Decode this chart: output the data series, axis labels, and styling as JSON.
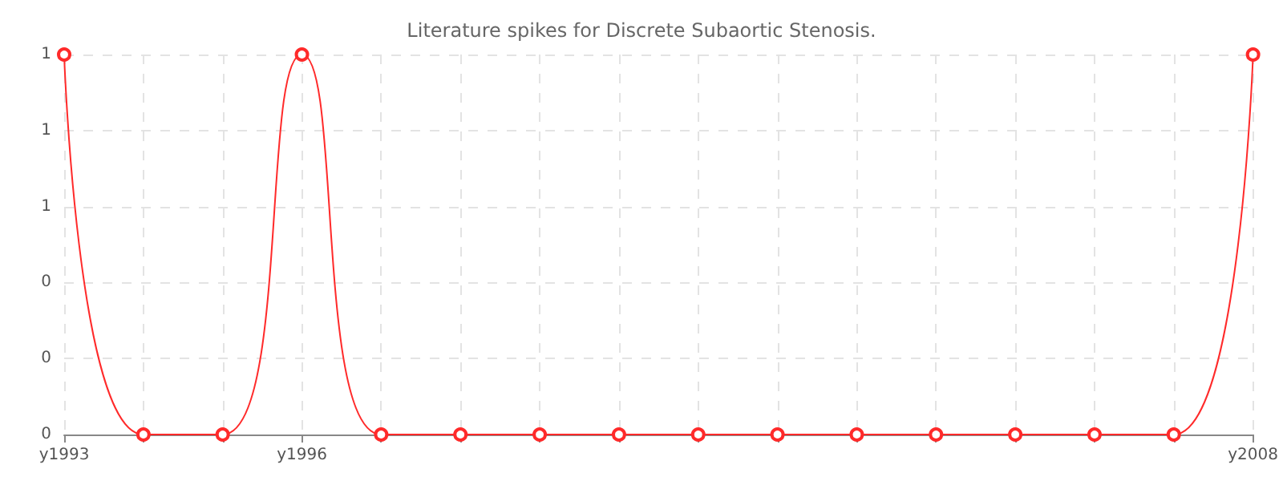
{
  "chart_data": {
    "type": "line",
    "title": "Literature spikes for Discrete Subaortic Stenosis.",
    "categories": [
      "y1993",
      null,
      null,
      "y1996",
      null,
      null,
      null,
      null,
      null,
      null,
      null,
      null,
      null,
      null,
      null,
      "y2008"
    ],
    "series": [
      {
        "color": "#ff2a2a",
        "values": [
          1,
          0,
          0,
          1,
          0,
          0,
          0,
          0,
          0,
          0,
          0,
          0,
          0,
          0,
          0,
          1
        ]
      }
    ],
    "ylim": [
      0,
      1
    ],
    "yticks": [
      0,
      {
        "value": 0.2,
        "label": "0"
      },
      {
        "value": 0.4,
        "label": "0"
      },
      {
        "value": 0.6,
        "label": "1"
      },
      {
        "value": 0.8,
        "label": "1"
      },
      1
    ],
    "grid": true,
    "marker": "circle",
    "line_style": "solid"
  }
}
